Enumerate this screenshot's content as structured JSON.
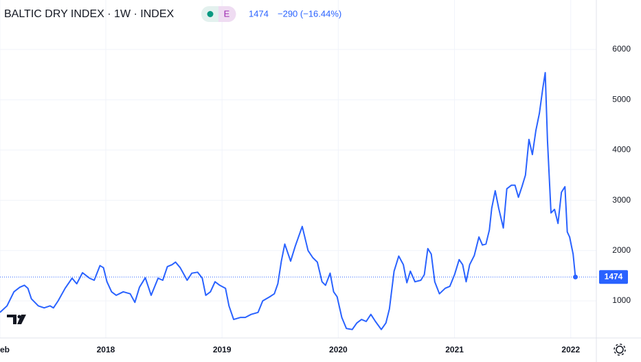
{
  "chart_data": {
    "type": "line",
    "title": "BALTIC DRY INDEX · 1W · INDEX",
    "badge": "E",
    "change": "−290 (−16.44%)",
    "x": [
      2017.09,
      2017.15,
      2017.21,
      2017.26,
      2017.3,
      2017.33,
      2017.36,
      2017.42,
      2017.47,
      2017.52,
      2017.55,
      2017.59,
      2017.65,
      2017.71,
      2017.75,
      2017.8,
      2017.86,
      2017.9,
      2017.95,
      2017.98,
      2018.01,
      2018.05,
      2018.09,
      2018.15,
      2018.21,
      2018.25,
      2018.29,
      2018.34,
      2018.39,
      2018.45,
      2018.49,
      2018.53,
      2018.57,
      2018.6,
      2018.64,
      2018.7,
      2018.74,
      2018.79,
      2018.83,
      2018.86,
      2018.9,
      2018.94,
      2018.98,
      2019.03,
      2019.06,
      2019.1,
      2019.16,
      2019.2,
      2019.25,
      2019.31,
      2019.35,
      2019.41,
      2019.45,
      2019.48,
      2019.51,
      2019.54,
      2019.59,
      2019.63,
      2019.69,
      2019.74,
      2019.78,
      2019.82,
      2019.86,
      2019.89,
      2019.93,
      2019.96,
      2019.99,
      2020.03,
      2020.07,
      2020.12,
      2020.16,
      2020.2,
      2020.24,
      2020.28,
      2020.32,
      2020.37,
      2020.41,
      2020.44,
      2020.48,
      2020.52,
      2020.56,
      2020.59,
      2020.62,
      2020.66,
      2020.71,
      2020.74,
      2020.77,
      2020.8,
      2020.83,
      2020.87,
      2020.92,
      2020.96,
      2021.0,
      2021.04,
      2021.07,
      2021.1,
      2021.13,
      2021.17,
      2021.21,
      2021.24,
      2021.27,
      2021.3,
      2021.32,
      2021.35,
      2021.38,
      2021.42,
      2021.45,
      2021.49,
      2021.52,
      2021.55,
      2021.58,
      2021.61,
      2021.64,
      2021.67,
      2021.7,
      2021.73,
      2021.76,
      2021.78,
      2021.8,
      2021.83,
      2021.86,
      2021.89,
      2021.92,
      2021.95,
      2021.97,
      2021.99,
      2022.02,
      2022.04
    ],
    "series": [
      {
        "color": "#2962ff",
        "values": [
          770,
          900,
          1180,
          1270,
          1310,
          1250,
          1040,
          900,
          860,
          900,
          860,
          1000,
          1250,
          1450,
          1340,
          1560,
          1450,
          1410,
          1700,
          1660,
          1380,
          1180,
          1110,
          1180,
          1140,
          970,
          1270,
          1460,
          1110,
          1450,
          1410,
          1680,
          1720,
          1770,
          1660,
          1410,
          1550,
          1570,
          1450,
          1110,
          1180,
          1380,
          1310,
          1250,
          900,
          630,
          670,
          670,
          730,
          770,
          1000,
          1080,
          1140,
          1340,
          1790,
          2130,
          1790,
          2090,
          2480,
          2000,
          1860,
          1770,
          1380,
          1310,
          1550,
          1180,
          1080,
          670,
          450,
          430,
          560,
          630,
          590,
          730,
          590,
          430,
          560,
          840,
          1590,
          1890,
          1720,
          1360,
          1590,
          1380,
          1410,
          1520,
          2040,
          1930,
          1380,
          1140,
          1250,
          1290,
          1520,
          1820,
          1720,
          1380,
          1720,
          1900,
          2270,
          2110,
          2130,
          2410,
          2840,
          3190,
          2840,
          2450,
          3230,
          3300,
          3300,
          3060,
          3270,
          3500,
          4210,
          3910,
          4390,
          4730,
          5240,
          5540,
          4180,
          2750,
          2820,
          2540,
          3160,
          3270,
          2370,
          2270,
          1930,
          1474
        ]
      }
    ],
    "xlim": [
      2017.09,
      2022.22
    ],
    "ylim": [
      262,
      6984
    ],
    "xticks": [
      {
        "value": 2017.09,
        "label": "eb"
      },
      2018,
      2019,
      2020,
      2021,
      2022
    ],
    "yticks": [
      1000,
      2000,
      3000,
      4000,
      5000,
      6000
    ],
    "grid": true
  }
}
